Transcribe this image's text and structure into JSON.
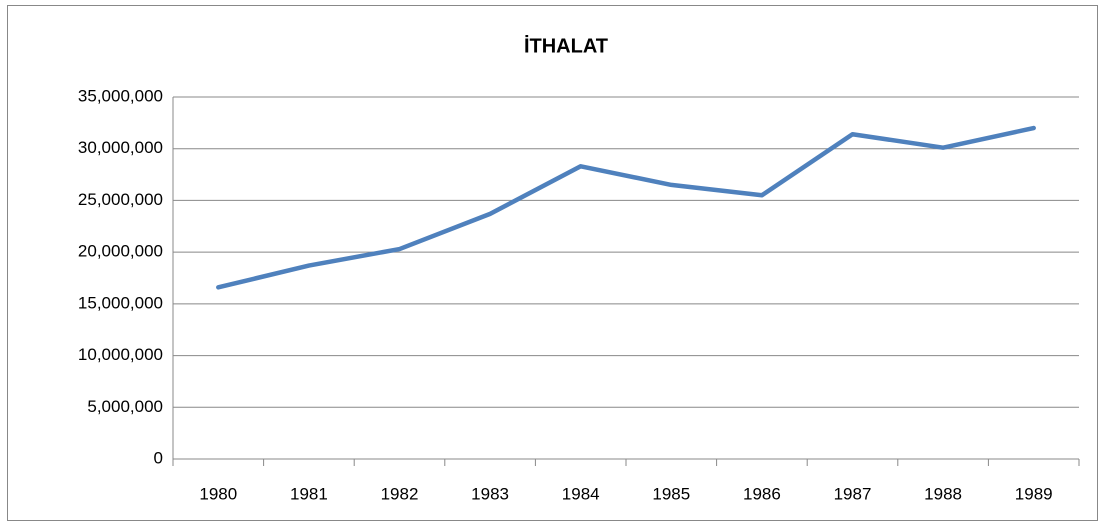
{
  "chart_data": {
    "type": "line",
    "title": "İTHALAT",
    "categories": [
      "1980",
      "1981",
      "1982",
      "1983",
      "1984",
      "1985",
      "1986",
      "1987",
      "1988",
      "1989"
    ],
    "series": [
      {
        "name": "İTHALAT",
        "color": "#4f81bd",
        "values": [
          16600000,
          18700000,
          20300000,
          23700000,
          28300000,
          26500000,
          25500000,
          31400000,
          30100000,
          32000000
        ]
      }
    ],
    "ylim": [
      0,
      35000000
    ],
    "yticks": [
      0,
      {
        "value": 5000000,
        "label": "5,000,000"
      },
      {
        "value": 10000000,
        "label": "10,000,000"
      },
      {
        "value": 15000000,
        "label": "15,000,000"
      },
      {
        "value": 20000000,
        "label": "20,000,000"
      },
      {
        "value": 25000000,
        "label": "25,000,000"
      },
      {
        "value": 30000000,
        "label": "30,000,000"
      },
      {
        "value": 35000000,
        "label": "35,000,000"
      }
    ],
    "grid": true
  }
}
